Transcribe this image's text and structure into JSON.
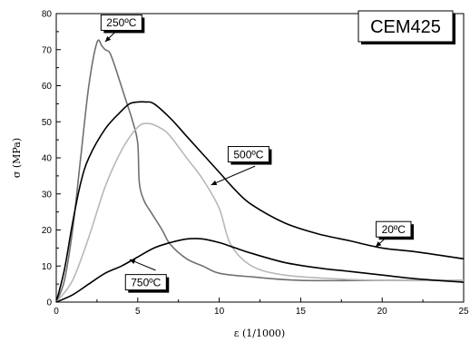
{
  "chart_data": {
    "type": "line",
    "title": "CEM425",
    "xlabel": "ε (1/1000)",
    "ylabel": "σ (MPa)",
    "xlim": [
      0,
      25
    ],
    "ylim": [
      0,
      80
    ],
    "x_ticks": [
      "0",
      "5",
      "10",
      "15",
      "20",
      "25"
    ],
    "y_ticks": [
      "0",
      "10",
      "20",
      "30",
      "40",
      "50",
      "60",
      "70",
      "80"
    ],
    "grid": false,
    "legend": "none",
    "series": [
      {
        "name": "250ºC",
        "color": "#707070",
        "points": [
          [
            0,
            0
          ],
          [
            0.5,
            6
          ],
          [
            1,
            20
          ],
          [
            1.5,
            40
          ],
          [
            2,
            60
          ],
          [
            2.5,
            72
          ],
          [
            2.8,
            71
          ],
          [
            3,
            70
          ],
          [
            3.3,
            69
          ],
          [
            3.7,
            64
          ],
          [
            4.2,
            57
          ],
          [
            4.7,
            50
          ],
          [
            5,
            44
          ],
          [
            5.1,
            33
          ],
          [
            5.4,
            28
          ],
          [
            5.8,
            25
          ],
          [
            6.5,
            20
          ],
          [
            7,
            16
          ],
          [
            8,
            12
          ],
          [
            9,
            10
          ],
          [
            10,
            8
          ],
          [
            12,
            7
          ],
          [
            15,
            6
          ],
          [
            20,
            6
          ],
          [
            25,
            6
          ]
        ]
      },
      {
        "name": "20ºC",
        "color": "#000000",
        "points": [
          [
            0,
            0
          ],
          [
            0.5,
            9
          ],
          [
            1,
            22
          ],
          [
            1.5,
            33
          ],
          [
            2,
            40
          ],
          [
            3,
            48
          ],
          [
            4,
            53
          ],
          [
            4.5,
            55
          ],
          [
            5,
            55.5
          ],
          [
            5.5,
            55.5
          ],
          [
            6,
            55
          ],
          [
            7,
            51
          ],
          [
            8,
            46
          ],
          [
            9,
            41
          ],
          [
            10,
            36
          ],
          [
            11,
            31
          ],
          [
            12,
            27
          ],
          [
            14,
            22
          ],
          [
            16,
            19
          ],
          [
            18,
            17
          ],
          [
            20,
            15
          ],
          [
            22,
            14
          ],
          [
            25,
            12
          ]
        ]
      },
      {
        "name": "500ºC",
        "color": "#b8b8b8",
        "points": [
          [
            0,
            0
          ],
          [
            1,
            6
          ],
          [
            2,
            18
          ],
          [
            3,
            32
          ],
          [
            4,
            42
          ],
          [
            5,
            48.5
          ],
          [
            5.7,
            49.5
          ],
          [
            6.5,
            48
          ],
          [
            7,
            46
          ],
          [
            8,
            40
          ],
          [
            9,
            34
          ],
          [
            10,
            26
          ],
          [
            10.7,
            16
          ],
          [
            12,
            10
          ],
          [
            14,
            7.5
          ],
          [
            17,
            6.5
          ],
          [
            20,
            6
          ],
          [
            25,
            6
          ]
        ]
      },
      {
        "name": "750ºC",
        "color": "#000000",
        "points": [
          [
            0,
            0
          ],
          [
            1,
            2
          ],
          [
            2,
            5
          ],
          [
            3,
            8
          ],
          [
            4,
            10
          ],
          [
            5,
            12.5
          ],
          [
            6,
            15
          ],
          [
            7,
            16.5
          ],
          [
            8,
            17.5
          ],
          [
            9,
            17.5
          ],
          [
            10,
            16.5
          ],
          [
            11,
            15
          ],
          [
            12,
            13.5
          ],
          [
            14,
            11
          ],
          [
            16,
            9.5
          ],
          [
            18,
            8.5
          ],
          [
            20,
            7.5
          ],
          [
            22,
            6.5
          ],
          [
            25,
            5.5
          ]
        ]
      }
    ],
    "annotations": [
      {
        "text": "250ºC",
        "box": [
          4.0,
          77.5
        ],
        "arrow_from": [
          3.6,
          74.8
        ],
        "arrow_to": [
          3.0,
          72.2
        ]
      },
      {
        "text": "500ºC",
        "box": [
          11.8,
          41.0
        ],
        "arrow_from": [
          12.2,
          37.7
        ],
        "arrow_to": [
          9.5,
          32.5
        ]
      },
      {
        "text": "20ºC",
        "box": [
          20.7,
          20.2
        ],
        "arrow_from": [
          20.2,
          17.7
        ],
        "arrow_to": [
          19.6,
          15.3
        ]
      },
      {
        "text": "750ºC",
        "box": [
          5.5,
          5.5
        ],
        "arrow_from": [
          6.1,
          8.8
        ],
        "arrow_to": [
          4.5,
          11.8
        ]
      }
    ]
  }
}
